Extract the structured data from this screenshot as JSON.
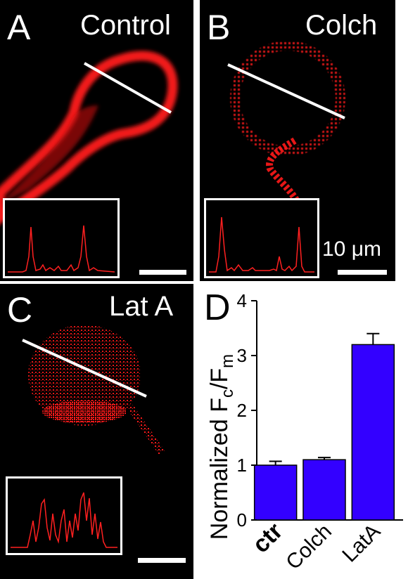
{
  "panels": {
    "A": {
      "letter": "A",
      "label": "Control"
    },
    "B": {
      "letter": "B",
      "label": "Colch",
      "scale_text": "10 μm"
    },
    "C": {
      "letter": "C",
      "label": "Lat A"
    },
    "D": {
      "letter": "D"
    }
  },
  "colors": {
    "cell": "#ff1a1a",
    "bar": "#3300ff",
    "trace": "#ff2020"
  },
  "chart_data": {
    "type": "bar",
    "categories": [
      "ctr",
      "Colch",
      "LatA"
    ],
    "values": [
      1.0,
      1.1,
      3.2
    ],
    "errors": [
      0.07,
      0.04,
      0.2
    ],
    "ylabel": "Normalized F",
    "ylabel_sub1": "c",
    "ylabel_mid": "/F",
    "ylabel_sub2": "m",
    "ylim": [
      0,
      4
    ],
    "yticks": [
      "0",
      "1",
      "2",
      "3",
      "4"
    ]
  }
}
